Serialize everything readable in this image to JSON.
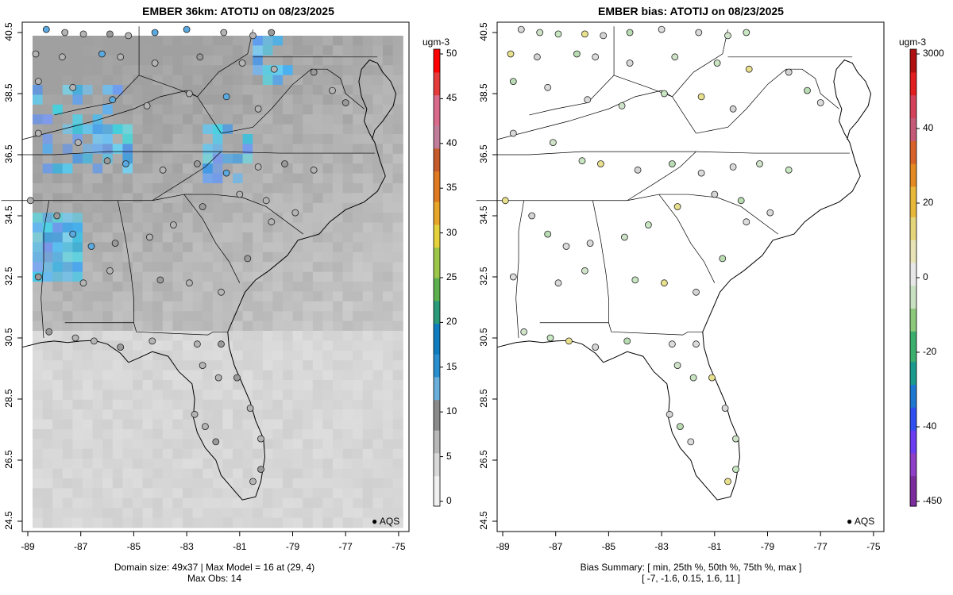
{
  "left_panel": {
    "title": "EMBER 36km: ATOTIJ on 08/23/2025",
    "units": "ugm-3",
    "colorbar_ticks": [
      "0",
      "5",
      "10",
      "15",
      "20",
      "25",
      "30",
      "35",
      "40",
      "45",
      "50"
    ],
    "colorbar_range": [
      0,
      50
    ],
    "x_ticks": [
      "-89",
      "-87",
      "-85",
      "-83",
      "-81",
      "-79",
      "-77",
      "-75"
    ],
    "y_ticks": [
      "24.5",
      "26.5",
      "28.5",
      "30.5",
      "32.5",
      "34.5",
      "36.5",
      "38.5",
      "40.5"
    ],
    "footer_line1": "Domain size: 49x37 | Max Model = 16 at (29, 4)",
    "footer_line2": "Max Obs: 14",
    "legend_label": "AQS"
  },
  "right_panel": {
    "title": "EMBER bias: ATOTIJ on 08/23/2025",
    "units": "ugm-3",
    "colorbar_ticks": [
      "-450",
      "-40",
      "-20",
      "0",
      "20",
      "40",
      "3000"
    ],
    "x_ticks": [
      "-89",
      "-87",
      "-85",
      "-83",
      "-81",
      "-79",
      "-77",
      "-75"
    ],
    "y_ticks": [
      "24.5",
      "26.5",
      "28.5",
      "30.5",
      "32.5",
      "34.5",
      "36.5",
      "38.5",
      "40.5"
    ],
    "footer_line1": "Bias Summary: [ min, 25th %, 50th %, 75th %, max ]",
    "footer_line2": "[ -7,   -1.6,   0.15,   1.6,   11 ]",
    "legend_label": "AQS"
  },
  "map_extent": {
    "lon": [
      -89.2,
      -74.5
    ],
    "lat": [
      24.0,
      40.75
    ]
  },
  "bias_summary": {
    "min": -7,
    "p25": -1.6,
    "p50": 0.15,
    "p75": 1.6,
    "max": 11
  }
}
